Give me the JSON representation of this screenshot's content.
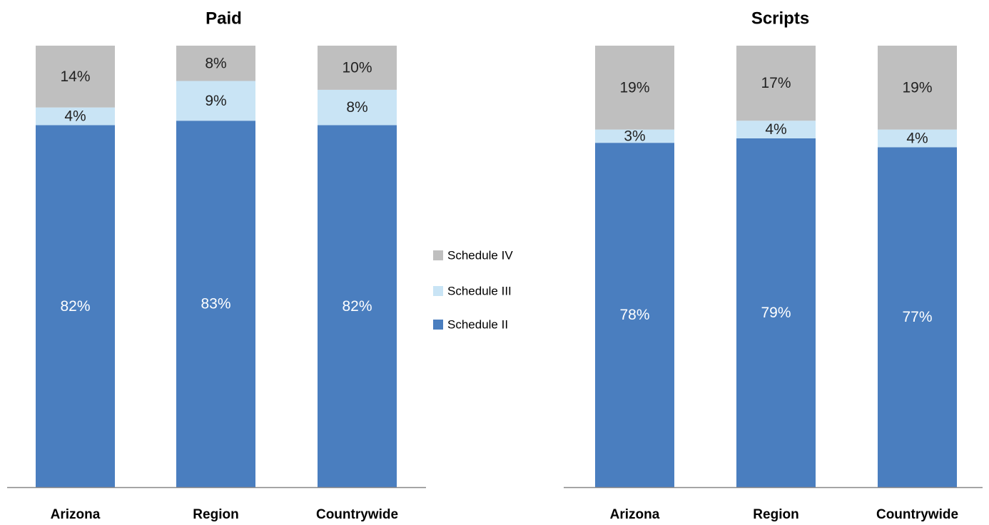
{
  "chart_data": [
    {
      "type": "bar",
      "stacked": true,
      "title": "Paid",
      "categories": [
        "Arizona",
        "Region",
        "Countrywide"
      ],
      "series": [
        {
          "name": "Schedule II",
          "color": "#4a7ebf",
          "values": [
            82,
            83,
            82
          ],
          "value_labels": [
            "82%",
            "83%",
            "82%"
          ]
        },
        {
          "name": "Schedule III",
          "color": "#c9e4f5",
          "values": [
            4,
            9,
            8
          ],
          "value_labels": [
            "4%",
            "9%",
            "8%"
          ]
        },
        {
          "name": "Schedule IV",
          "color": "#bfbfbf",
          "values": [
            14,
            8,
            10
          ],
          "value_labels": [
            "14%",
            "8%",
            "10%"
          ]
        }
      ]
    },
    {
      "type": "bar",
      "stacked": true,
      "title": "Scripts",
      "categories": [
        "Arizona",
        "Region",
        "Countrywide"
      ],
      "series": [
        {
          "name": "Schedule II",
          "color": "#4a7ebf",
          "values": [
            78,
            79,
            77
          ],
          "value_labels": [
            "78%",
            "79%",
            "77%"
          ]
        },
        {
          "name": "Schedule III",
          "color": "#c9e4f5",
          "values": [
            3,
            4,
            4
          ],
          "value_labels": [
            "3%",
            "4%",
            "4%"
          ]
        },
        {
          "name": "Schedule IV",
          "color": "#bfbfbf",
          "values": [
            19,
            17,
            19
          ],
          "value_labels": [
            "19%",
            "17%",
            "19%"
          ]
        }
      ]
    }
  ]
}
